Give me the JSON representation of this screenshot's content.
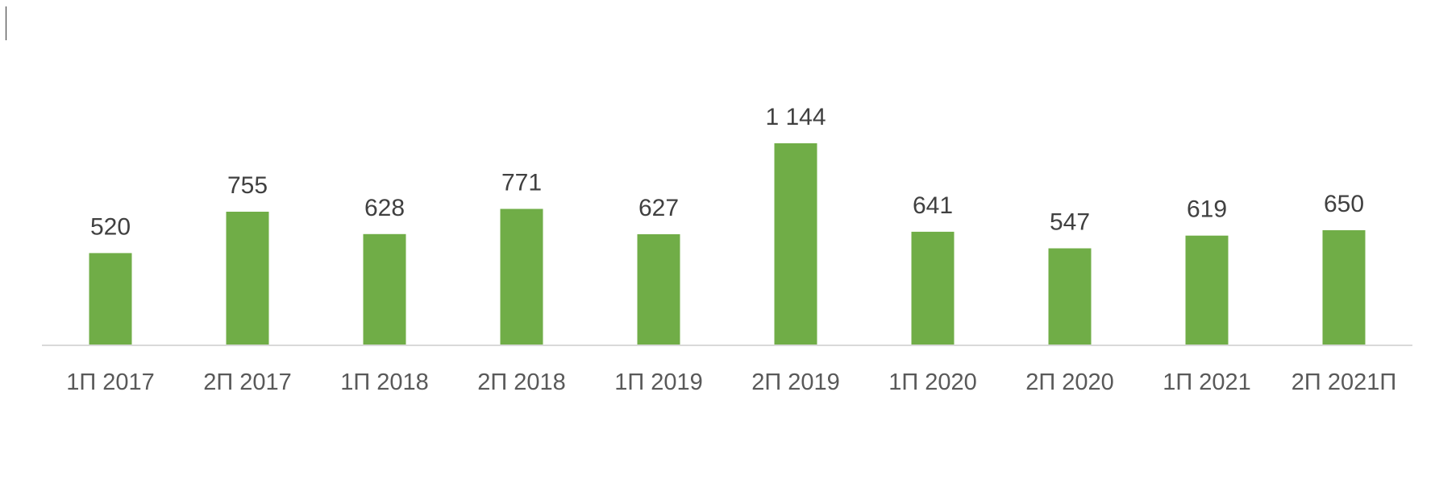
{
  "chart_data": {
    "type": "bar",
    "title": "",
    "xlabel": "",
    "ylabel": "",
    "categories": [
      "1П 2017",
      "2П 2017",
      "1П 2018",
      "2П 2018",
      "1П 2019",
      "2П 2019",
      "1П 2020",
      "2П 2020",
      "1П 2021",
      "2П 2021П"
    ],
    "values": [
      520,
      755,
      628,
      771,
      627,
      1144,
      641,
      547,
      619,
      650
    ],
    "value_labels": [
      "520",
      "755",
      "628",
      "771",
      "627",
      "1 144",
      "641",
      "547",
      "619",
      "650"
    ],
    "ylim": [
      0,
      1144
    ],
    "grid": false,
    "legend": "none",
    "colors": {
      "bar": "#70AD47",
      "axis": "#D9D9D9",
      "label": "#404040",
      "tick": "#595959"
    }
  }
}
